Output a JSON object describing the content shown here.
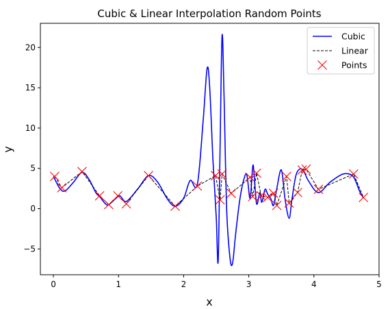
{
  "chart_data": {
    "type": "line",
    "title": "Cubic & Linear Interpolation Random Points",
    "xlabel": "x",
    "ylabel": "y",
    "xlim": [
      -0.2,
      5.0
    ],
    "ylim": [
      -8.2,
      23.0
    ],
    "xticks": [
      0,
      1,
      2,
      3,
      4,
      5
    ],
    "yticks": [
      -5,
      0,
      5,
      10,
      15,
      20
    ],
    "xtick_labels": [
      "0",
      "1",
      "2",
      "3",
      "4",
      "5"
    ],
    "ytick_labels": [
      "−5",
      "0",
      "5",
      "10",
      "15",
      "20"
    ],
    "grid": false,
    "legend_position": "top-right",
    "colors": {
      "cubic": "#0000ff",
      "linear": "#000000",
      "points": "#ff0000"
    },
    "legend": [
      {
        "key": "cubic",
        "label": "Cubic",
        "style": "solid-line"
      },
      {
        "key": "linear",
        "label": "Linear",
        "style": "dashed-line"
      },
      {
        "key": "points",
        "label": "Points",
        "style": "x-marker"
      }
    ],
    "points": {
      "x": [
        0.02,
        0.13,
        0.44,
        0.71,
        0.85,
        0.99,
        1.12,
        1.46,
        1.87,
        2.21,
        2.49,
        2.56,
        2.59,
        2.73,
        3.02,
        3.06,
        3.12,
        3.19,
        3.29,
        3.38,
        3.43,
        3.58,
        3.62,
        3.75,
        3.82,
        3.88,
        4.07,
        4.61,
        4.76
      ],
      "y": [
        4.0,
        2.6,
        4.6,
        1.6,
        0.5,
        1.6,
        0.6,
        4.1,
        0.3,
        2.8,
        4.1,
        1.1,
        4.3,
        1.9,
        3.9,
        1.5,
        4.4,
        1.6,
        1.4,
        1.9,
        0.4,
        4.0,
        0.7,
        2.0,
        4.8,
        4.9,
        2.4,
        4.3,
        1.4
      ]
    },
    "cubic": {
      "x": [
        0.0,
        0.1,
        0.18,
        0.3,
        0.44,
        0.55,
        0.65,
        0.71,
        0.8,
        0.85,
        0.95,
        1.02,
        1.12,
        1.3,
        1.46,
        1.6,
        1.75,
        1.87,
        2.0,
        2.1,
        2.21,
        2.3,
        2.36,
        2.4,
        2.45,
        2.5,
        2.53,
        2.56,
        2.59,
        2.62,
        2.66,
        2.71,
        2.75,
        2.8,
        2.86,
        2.92,
        2.97,
        3.02,
        3.06,
        3.08,
        3.12,
        3.17,
        3.2,
        3.25,
        3.29,
        3.34,
        3.38,
        3.43,
        3.5,
        3.56,
        3.62,
        3.66,
        3.72,
        3.78,
        3.84,
        3.92,
        4.07,
        4.25,
        4.45,
        4.6,
        4.7,
        4.76
      ],
      "y": [
        4.0,
        2.5,
        2.2,
        3.2,
        4.5,
        3.6,
        2.0,
        1.5,
        0.6,
        0.5,
        1.2,
        1.6,
        0.9,
        2.5,
        4.1,
        3.3,
        1.2,
        0.3,
        1.3,
        3.5,
        3.0,
        11.0,
        17.4,
        15.0,
        6.0,
        -1.0,
        -6.5,
        8.0,
        21.5,
        14.0,
        0.0,
        -6.0,
        -6.8,
        -3.0,
        1.0,
        3.5,
        4.2,
        1.3,
        5.2,
        4.5,
        0.6,
        2.0,
        0.8,
        2.4,
        1.8,
        1.2,
        0.4,
        2.5,
        4.8,
        1.0,
        -1.2,
        1.0,
        4.0,
        4.9,
        4.7,
        3.4,
        2.0,
        3.3,
        4.3,
        4.0,
        2.2,
        1.3
      ]
    },
    "linear": {
      "x": [
        0.02,
        0.13,
        0.44,
        0.71,
        0.85,
        0.99,
        1.12,
        1.46,
        1.87,
        2.21,
        2.49,
        2.56,
        2.59,
        2.73,
        3.02,
        3.06,
        3.12,
        3.19,
        3.29,
        3.38,
        3.43,
        3.58,
        3.62,
        3.75,
        3.82,
        3.88,
        4.07,
        4.61,
        4.76
      ],
      "y": [
        4.0,
        2.6,
        4.6,
        1.6,
        0.5,
        1.6,
        0.6,
        4.1,
        0.3,
        2.8,
        4.1,
        1.1,
        4.3,
        1.9,
        3.9,
        1.5,
        4.4,
        1.6,
        1.4,
        1.9,
        0.4,
        4.0,
        0.7,
        2.0,
        4.8,
        4.9,
        2.4,
        4.3,
        1.4
      ]
    }
  }
}
